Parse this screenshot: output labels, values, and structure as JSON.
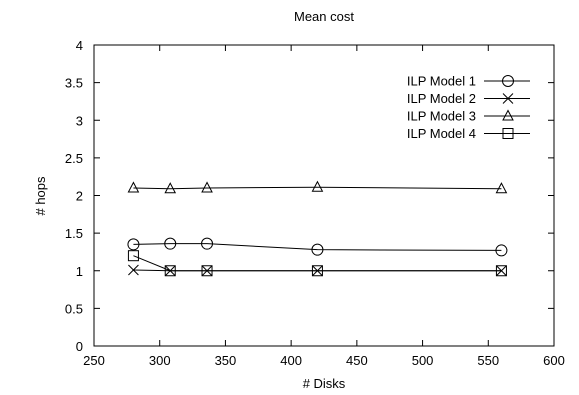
{
  "chart_data": {
    "type": "line",
    "title": "Mean cost",
    "xlabel": "# Disks",
    "ylabel": "# hops",
    "xlim": [
      250,
      600
    ],
    "ylim": [
      0,
      4
    ],
    "x_ticks": [
      250,
      300,
      350,
      400,
      450,
      500,
      550,
      600
    ],
    "y_ticks": [
      0,
      0.5,
      1,
      1.5,
      2,
      2.5,
      3,
      3.5,
      4
    ],
    "x_tick_labels": [
      "250",
      "300",
      "350",
      "400",
      "450",
      "500",
      "550",
      "600"
    ],
    "y_tick_labels": [
      "0",
      "0.5",
      "1",
      "1.5",
      "2",
      "2.5",
      "3",
      "3.5",
      "4"
    ],
    "grid": false,
    "legend_position": "top-right",
    "series": [
      {
        "name": "ILP Model 1",
        "marker": "circle",
        "x": [
          280,
          308,
          336,
          420,
          560
        ],
        "y": [
          1.35,
          1.36,
          1.36,
          1.28,
          1.27
        ]
      },
      {
        "name": "ILP Model 2",
        "marker": "cross",
        "x": [
          280,
          308,
          336,
          420,
          560
        ],
        "y": [
          1.01,
          1.0,
          1.0,
          1.0,
          1.0
        ]
      },
      {
        "name": "ILP Model 3",
        "marker": "triangle",
        "x": [
          280,
          308,
          336,
          420,
          560
        ],
        "y": [
          2.1,
          2.09,
          2.1,
          2.11,
          2.09
        ]
      },
      {
        "name": "ILP Model 4",
        "marker": "square",
        "x": [
          280,
          308,
          336,
          420,
          560
        ],
        "y": [
          1.2,
          1.0,
          1.0,
          1.0,
          1.0
        ]
      }
    ]
  }
}
